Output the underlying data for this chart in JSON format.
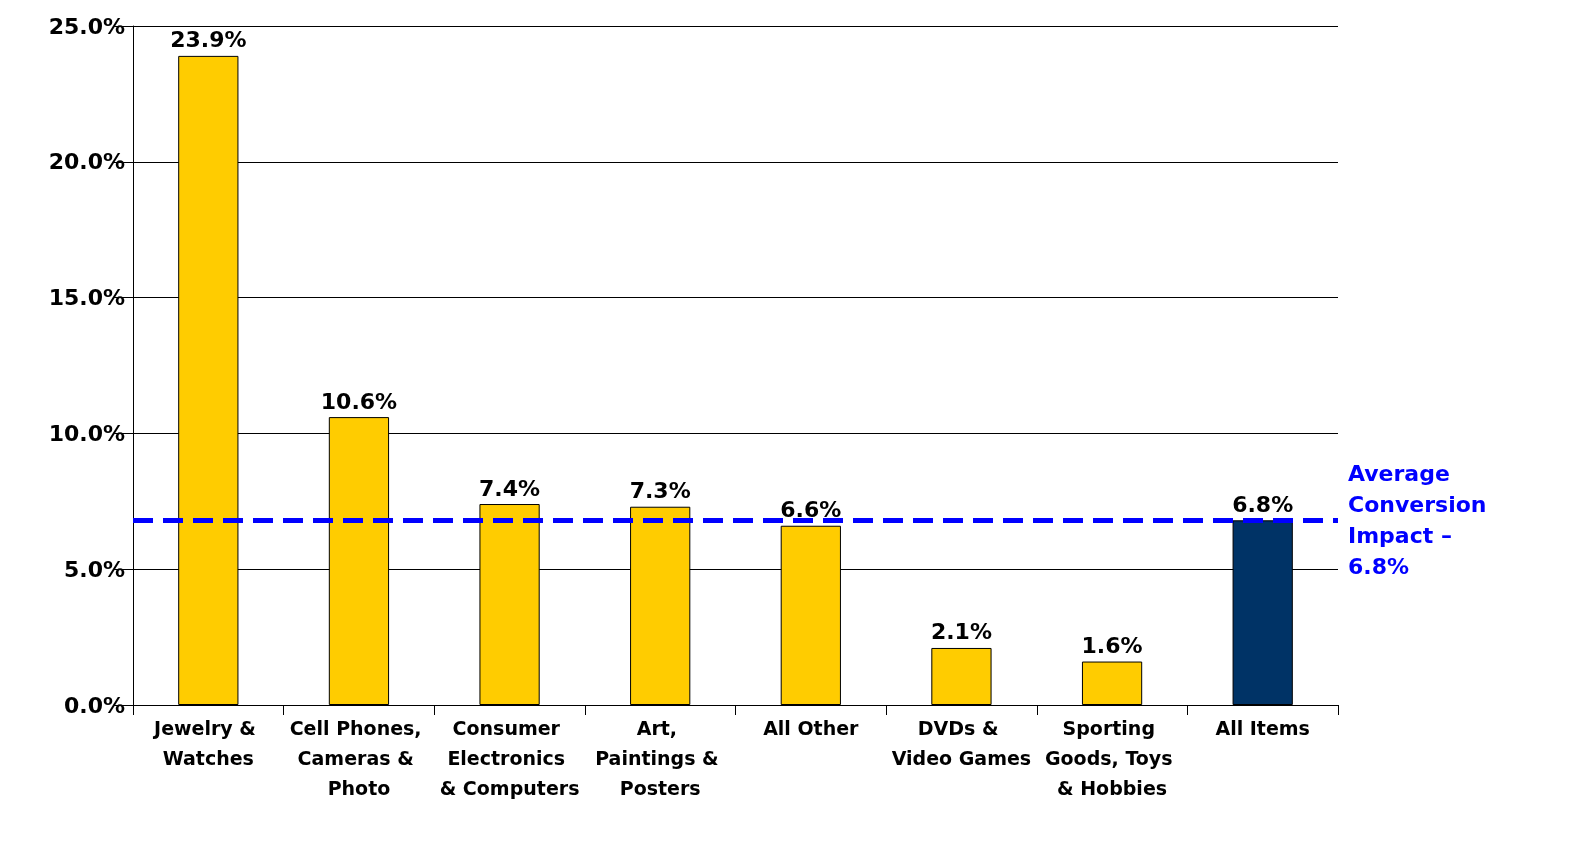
{
  "chart_data": {
    "type": "bar",
    "categories": [
      "Jewelry & Watches",
      "Cell Phones, Cameras & Photo",
      "Consumer Electronics & Computers",
      "Art, Paintings & Posters",
      "All Other",
      "DVDs & Video Games",
      "Sporting Goods, Toys & Hobbies",
      "All Items"
    ],
    "values": [
      23.9,
      10.6,
      7.4,
      7.3,
      6.6,
      2.1,
      1.6,
      6.8
    ],
    "colors": [
      "#ffcc00",
      "#ffcc00",
      "#ffcc00",
      "#ffcc00",
      "#ffcc00",
      "#ffcc00",
      "#ffcc00",
      "#003366"
    ],
    "value_labels": [
      "23.9%",
      "10.6%",
      "7.4%",
      "7.3%",
      "6.6%",
      "2.1%",
      "1.6%",
      "6.8%"
    ],
    "ylim": [
      0,
      25
    ],
    "yticks": [
      {
        "value": 0,
        "label": "0.0%"
      },
      {
        "value": 5,
        "label": "5.0%"
      },
      {
        "value": 10,
        "label": "10.0%"
      },
      {
        "value": 15,
        "label": "15.0%"
      },
      {
        "value": 20,
        "label": "20.0%"
      },
      {
        "value": 25,
        "label": "25.0%"
      }
    ],
    "grid": "y",
    "ref_lines": [
      {
        "axis": "y",
        "value": 6.8,
        "label": "Average Conversion Impact – 6.8%",
        "color": "#0000ff",
        "line_style": "dashed"
      }
    ]
  }
}
